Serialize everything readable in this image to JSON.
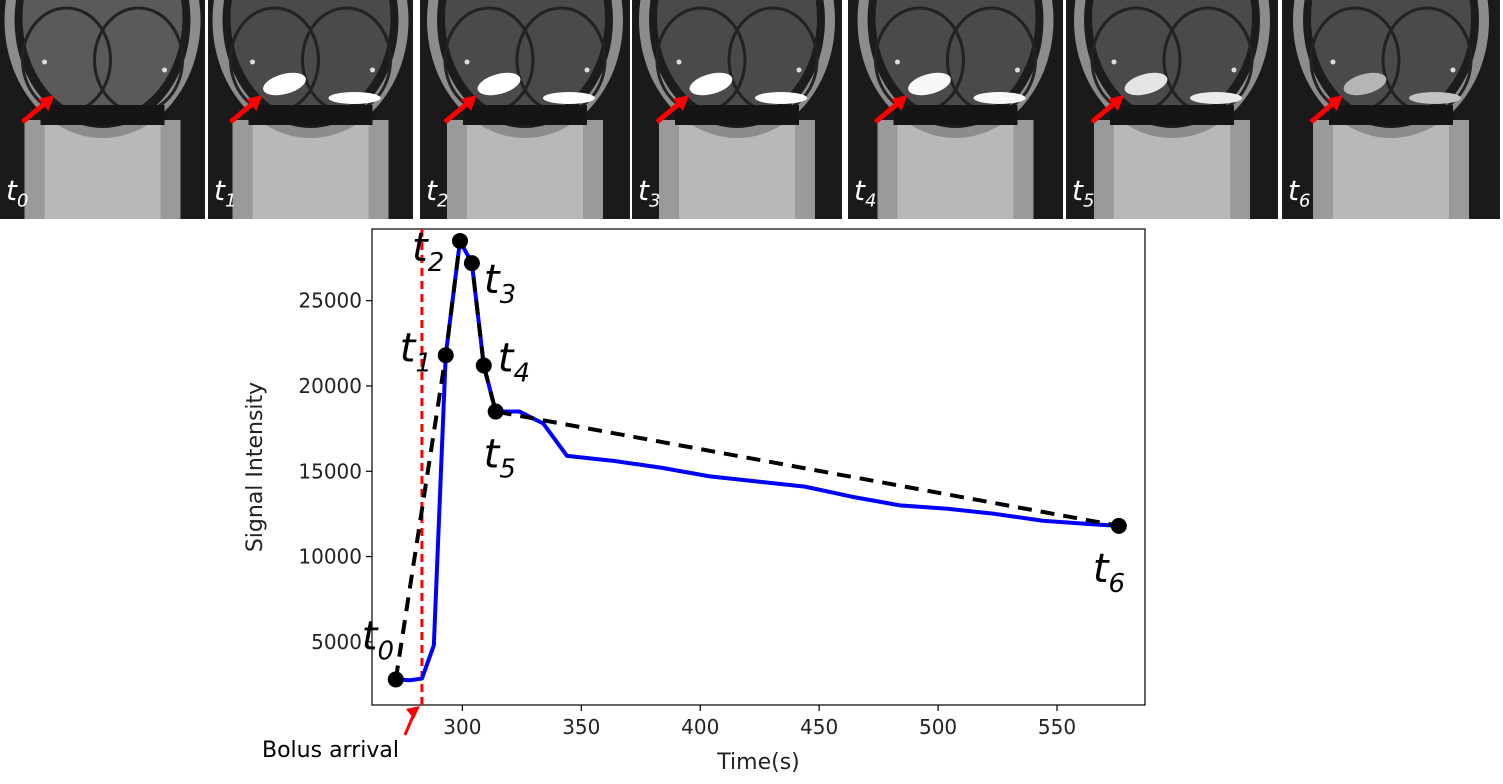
{
  "frames": [
    {
      "id": "t0",
      "sub": "0",
      "enhanced": false,
      "left_bright": 0.0,
      "right_bright": 0.0
    },
    {
      "id": "t1",
      "sub": "1",
      "enhanced": true,
      "left_bright": 1.0,
      "right_bright": 1.0
    },
    {
      "id": "t2",
      "sub": "2",
      "enhanced": true,
      "left_bright": 1.0,
      "right_bright": 1.0
    },
    {
      "id": "t3",
      "sub": "3",
      "enhanced": true,
      "left_bright": 1.0,
      "right_bright": 1.0
    },
    {
      "id": "t4",
      "sub": "4",
      "enhanced": true,
      "left_bright": 0.95,
      "right_bright": 0.95
    },
    {
      "id": "t5",
      "sub": "5",
      "enhanced": true,
      "left_bright": 0.8,
      "right_bright": 0.85
    },
    {
      "id": "t6",
      "sub": "6",
      "enhanced": true,
      "left_bright": 0.45,
      "right_bright": 0.55
    }
  ],
  "colors": {
    "signal_curve": "#0000ff",
    "dashed_fit": "#000000",
    "bolus_line": "#ff0000",
    "arrow": "#ff0000"
  },
  "chart_data": {
    "type": "line",
    "xlabel": "Time(s)",
    "ylabel": "Signal Intensity",
    "xlim": [
      262,
      587
    ],
    "ylim": [
      1300,
      29200
    ],
    "xticks": [
      300,
      350,
      400,
      450,
      500,
      550
    ],
    "yticks": [
      5000,
      10000,
      15000,
      20000,
      25000
    ],
    "grid": false,
    "series": [
      {
        "style": "solid",
        "color": "#0000ff",
        "x": [
          272,
          278,
          283,
          288,
          293,
          299,
          304,
          309,
          314,
          319,
          324,
          334,
          344,
          364,
          384,
          404,
          424,
          444,
          464,
          484,
          504,
          524,
          544,
          564,
          576
        ],
        "y": [
          2800,
          2750,
          2850,
          4800,
          21800,
          28500,
          27200,
          21200,
          18500,
          18500,
          18500,
          17800,
          15900,
          15600,
          15200,
          14700,
          14400,
          14100,
          13500,
          13000,
          12800,
          12500,
          12100,
          11900,
          11800
        ]
      },
      {
        "style": "dashed",
        "color": "#000000",
        "x": [
          272,
          293,
          299,
          304,
          309,
          314,
          576
        ],
        "y": [
          2800,
          21800,
          28500,
          27200,
          21200,
          18500,
          11800
        ]
      }
    ],
    "points": [
      {
        "label": "t",
        "sub": "0",
        "x": 272,
        "y": 2800
      },
      {
        "label": "t",
        "sub": "1",
        "x": 293,
        "y": 21800
      },
      {
        "label": "t",
        "sub": "2",
        "x": 299,
        "y": 28500
      },
      {
        "label": "t",
        "sub": "3",
        "x": 304,
        "y": 27200
      },
      {
        "label": "t",
        "sub": "4",
        "x": 309,
        "y": 21200
      },
      {
        "label": "t",
        "sub": "5",
        "x": 314,
        "y": 18500
      },
      {
        "label": "t",
        "sub": "6",
        "x": 576,
        "y": 11800
      }
    ],
    "bolus_arrival_x": 283,
    "annotations": [
      {
        "text": "Bolus arrival",
        "x": 283
      }
    ]
  }
}
